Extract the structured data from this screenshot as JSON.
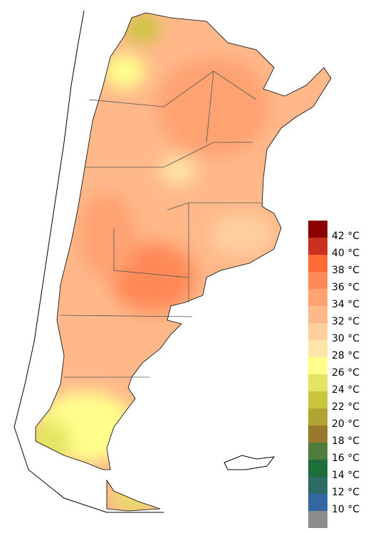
{
  "legend": {
    "labels": [
      "42 °C",
      "40 °C",
      "38 °C",
      "36 °C",
      "34 °C",
      "32 °C",
      "30 °C",
      "28 °C",
      "26 °C",
      "24 °C",
      "22 °C",
      "20 °C",
      "18 °C",
      "16 °C",
      "14 °C",
      "12 °C",
      "10 °C"
    ],
    "colors": [
      "#8b0000",
      "#c8321e",
      "#ff6a35",
      "#ff8a58",
      "#ffa272",
      "#ffb88a",
      "#ffcf9e",
      "#ffe6a8",
      "#ffff8c",
      "#e4e462",
      "#c9c63e",
      "#b0a432",
      "#98782c",
      "#4f7d3c",
      "#1e6e3c",
      "#2e6a66",
      "#3466a4",
      "#8c8c8c"
    ]
  }
}
